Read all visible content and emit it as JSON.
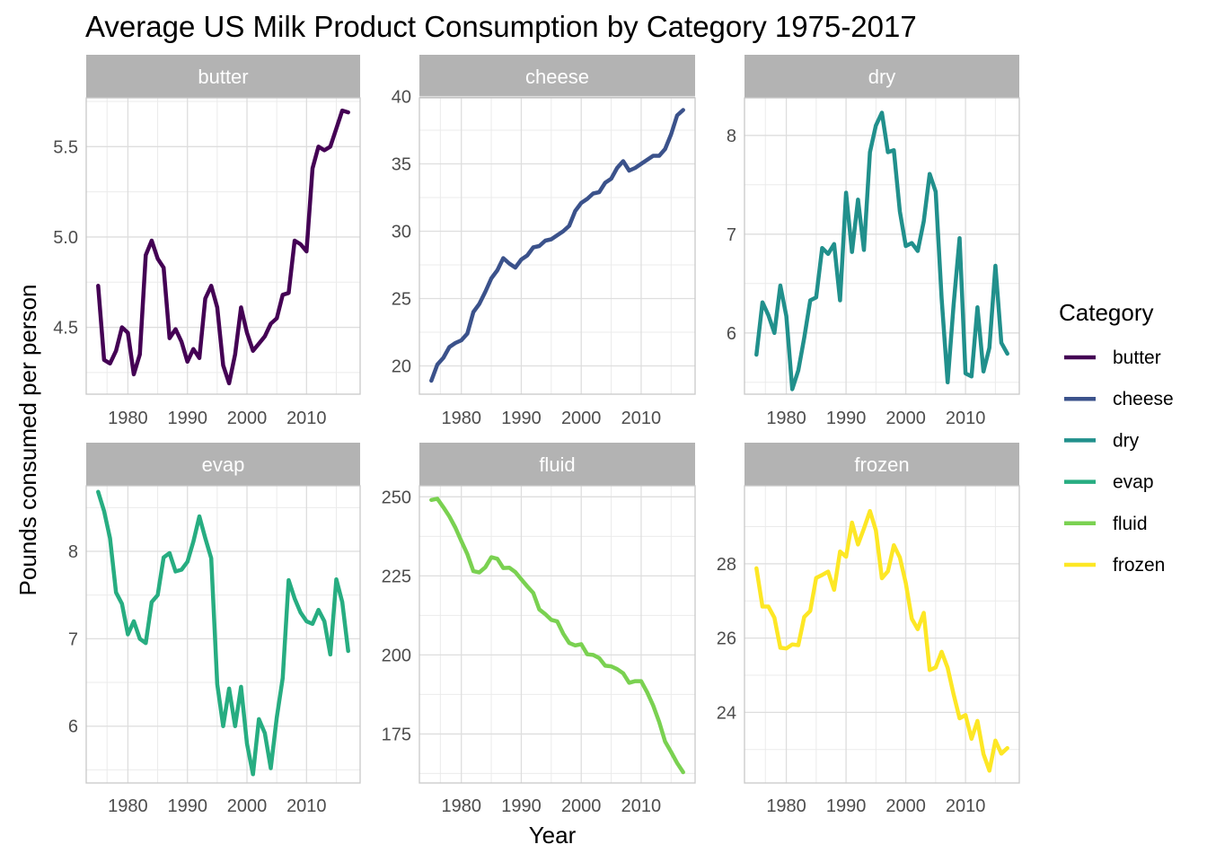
{
  "chart_data": {
    "type": "line",
    "title": "Average US Milk Product Consumption by Category 1975-2017",
    "xlabel": "Year",
    "ylabel": "Pounds consumed per person",
    "legend": {
      "title": "Category",
      "placement": "right",
      "entries": [
        "butter",
        "cheese",
        "dry",
        "evap",
        "fluid",
        "frozen"
      ]
    },
    "grid": true,
    "x_ticks": [
      1980,
      1990,
      2000,
      2010
    ],
    "x_range": [
      1973,
      2019
    ],
    "x": [
      1975,
      1976,
      1977,
      1978,
      1979,
      1980,
      1981,
      1982,
      1983,
      1984,
      1985,
      1986,
      1987,
      1988,
      1989,
      1990,
      1991,
      1992,
      1993,
      1994,
      1995,
      1996,
      1997,
      1998,
      1999,
      2000,
      2001,
      2002,
      2003,
      2004,
      2005,
      2006,
      2007,
      2008,
      2009,
      2010,
      2011,
      2012,
      2013,
      2014,
      2015,
      2016,
      2017
    ],
    "panels": [
      {
        "name": "butter",
        "color": "#440154",
        "ylim": [
          4.13,
          5.77
        ],
        "y_ticks": [
          4.5,
          5.0,
          5.5
        ],
        "y_tick_labels": [
          "4.5",
          "5.0",
          "5.5"
        ],
        "values": [
          4.73,
          4.32,
          4.3,
          4.37,
          4.5,
          4.47,
          4.24,
          4.35,
          4.9,
          4.98,
          4.88,
          4.83,
          4.44,
          4.49,
          4.42,
          4.31,
          4.38,
          4.33,
          4.66,
          4.73,
          4.61,
          4.29,
          4.19,
          4.35,
          4.61,
          4.47,
          4.37,
          4.41,
          4.45,
          4.52,
          4.55,
          4.68,
          4.69,
          4.98,
          4.96,
          4.92,
          5.38,
          5.5,
          5.48,
          5.5,
          5.6,
          5.7,
          5.69
        ]
      },
      {
        "name": "cheese",
        "color": "#3B528B",
        "ylim": [
          17.9,
          39.9
        ],
        "y_ticks": [
          20,
          25,
          30,
          35,
          40
        ],
        "y_tick_labels": [
          "20",
          "25",
          "30",
          "35",
          "40"
        ],
        "values": [
          18.9,
          20.1,
          20.6,
          21.4,
          21.7,
          21.9,
          22.4,
          24.0,
          24.6,
          25.5,
          26.5,
          27.1,
          28.0,
          27.6,
          27.3,
          27.9,
          28.2,
          28.8,
          28.9,
          29.3,
          29.4,
          29.7,
          30.0,
          30.4,
          31.5,
          32.1,
          32.4,
          32.8,
          32.9,
          33.6,
          33.9,
          34.7,
          35.2,
          34.5,
          34.7,
          35.0,
          35.3,
          35.6,
          35.6,
          36.1,
          37.2,
          38.6,
          39.0
        ]
      },
      {
        "name": "dry",
        "color": "#21908C",
        "ylim": [
          5.38,
          8.38
        ],
        "y_ticks": [
          6,
          7,
          8
        ],
        "y_tick_labels": [
          "6",
          "7",
          "8"
        ],
        "values": [
          5.78,
          6.31,
          6.18,
          6.0,
          6.48,
          6.17,
          5.43,
          5.62,
          5.95,
          6.33,
          6.36,
          6.86,
          6.8,
          6.9,
          6.33,
          7.42,
          6.82,
          7.35,
          6.84,
          7.83,
          8.1,
          8.23,
          7.83,
          7.85,
          7.23,
          6.88,
          6.91,
          6.83,
          7.13,
          7.61,
          7.43,
          6.35,
          5.5,
          6.28,
          6.96,
          5.59,
          5.56,
          6.26,
          5.61,
          5.85,
          6.68,
          5.9,
          5.79
        ]
      },
      {
        "name": "evap",
        "color": "#27AD81",
        "ylim": [
          5.35,
          8.75
        ],
        "y_ticks": [
          6,
          7,
          8
        ],
        "y_tick_labels": [
          "6",
          "7",
          "8"
        ],
        "values": [
          8.68,
          8.46,
          8.15,
          7.53,
          7.4,
          7.05,
          7.2,
          7.0,
          6.95,
          7.42,
          7.5,
          7.93,
          7.98,
          7.77,
          7.79,
          7.88,
          8.11,
          8.4,
          8.15,
          7.92,
          6.48,
          6.0,
          6.43,
          6.0,
          6.45,
          5.8,
          5.45,
          6.08,
          5.92,
          5.52,
          6.1,
          6.55,
          7.67,
          7.46,
          7.3,
          7.2,
          7.17,
          7.33,
          7.2,
          6.82,
          7.68,
          7.42,
          6.86
        ]
      },
      {
        "name": "fluid",
        "color": "#7AD151",
        "ylim": [
          159.5,
          253.5
        ],
        "y_ticks": [
          175,
          200,
          225,
          250
        ],
        "y_tick_labels": [
          "175",
          "200",
          "225",
          "250"
        ],
        "values": [
          249.0,
          249.4,
          246.7,
          243.8,
          240.3,
          236.0,
          231.9,
          226.5,
          226.1,
          227.7,
          230.9,
          230.4,
          227.5,
          227.6,
          226.2,
          223.9,
          221.7,
          219.6,
          214.4,
          212.9,
          211.1,
          210.6,
          206.7,
          203.8,
          203.0,
          203.4,
          200.2,
          200.0,
          199.0,
          196.6,
          196.4,
          195.5,
          194.2,
          191.2,
          191.7,
          191.7,
          188.2,
          184.0,
          178.8,
          172.6,
          169.3,
          165.8,
          162.9
        ]
      },
      {
        "name": "frozen",
        "color": "#FDE725",
        "ylim": [
          22.1,
          30.1
        ],
        "y_ticks": [
          24,
          26,
          28
        ],
        "y_tick_labels": [
          "24",
          "26",
          "28"
        ],
        "values": [
          27.88,
          26.85,
          26.85,
          26.55,
          25.74,
          25.72,
          25.83,
          25.81,
          26.57,
          26.73,
          27.62,
          27.7,
          27.79,
          27.3,
          28.33,
          28.19,
          29.11,
          28.52,
          28.95,
          29.42,
          28.9,
          27.61,
          27.8,
          28.5,
          28.17,
          27.48,
          26.52,
          26.24,
          26.68,
          25.14,
          25.21,
          25.63,
          25.2,
          24.49,
          23.84,
          23.93,
          23.29,
          23.77,
          22.88,
          22.43,
          23.24,
          22.89,
          23.04
        ]
      }
    ]
  }
}
